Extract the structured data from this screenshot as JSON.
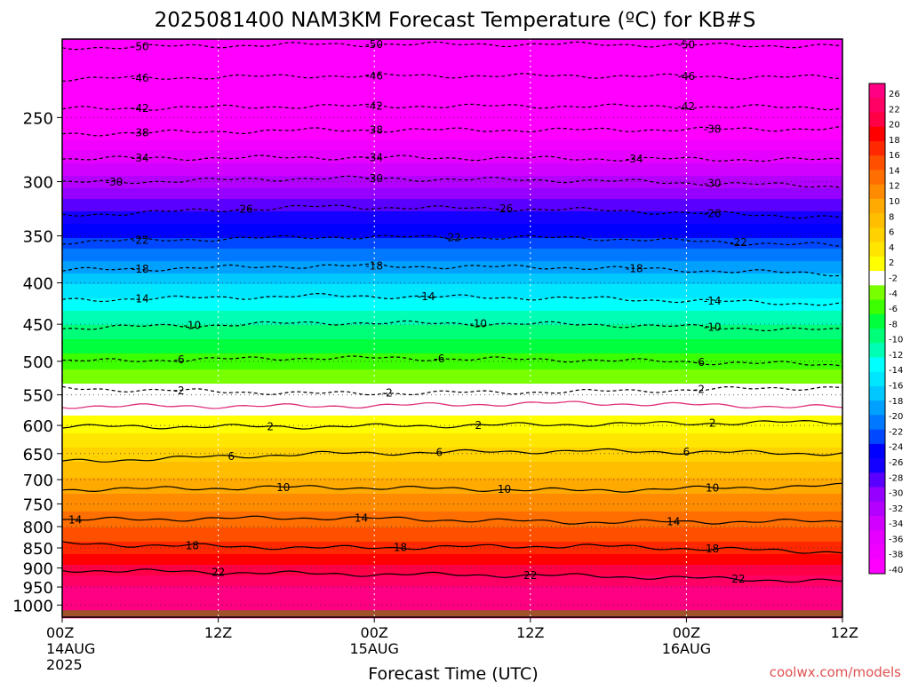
{
  "title": "2025081400 NAM3KM Forecast Temperature (ºC) for KB#S",
  "x_axis_label": "Forecast Time (UTC)",
  "credit": "coolwx.com/models",
  "chart_data": {
    "type": "heatmap",
    "title": "2025081400 NAM3KM Forecast Temperature (ºC) for KB#S",
    "xlabel": "Forecast Time (UTC)",
    "ylabel": "",
    "x_ticks": [
      {
        "hours": 0,
        "label": "00Z",
        "date": "14AUG",
        "year": "2025"
      },
      {
        "hours": 12,
        "label": "12Z",
        "date": "",
        "year": ""
      },
      {
        "hours": 24,
        "label": "00Z",
        "date": "15AUG",
        "year": ""
      },
      {
        "hours": 36,
        "label": "12Z",
        "date": "",
        "year": ""
      },
      {
        "hours": 48,
        "label": "00Z",
        "date": "16AUG",
        "year": ""
      },
      {
        "hours": 60,
        "label": "12Z",
        "date": "",
        "year": ""
      }
    ],
    "xlim": [
      0,
      60
    ],
    "y_scale": "log",
    "y_ticks": [
      250,
      300,
      350,
      400,
      450,
      500,
      550,
      600,
      650,
      700,
      750,
      800,
      850,
      900,
      950,
      1000
    ],
    "ylim": [
      1035,
      200
    ],
    "colorbar_labels": [
      26,
      22,
      20,
      18,
      16,
      14,
      12,
      10,
      8,
      6,
      4,
      2,
      -2,
      -4,
      -6,
      -8,
      -10,
      -12,
      -14,
      -16,
      -18,
      -20,
      -22,
      -24,
      -26,
      -28,
      -30,
      -32,
      -34,
      -36,
      -38,
      -40
    ],
    "colorbar": [
      {
        "t": -40,
        "color": "#ff00ff"
      },
      {
        "t": -38,
        "color": "#f200ff"
      },
      {
        "t": -36,
        "color": "#e600ff"
      },
      {
        "t": -34,
        "color": "#d200ff"
      },
      {
        "t": -32,
        "color": "#b400ff"
      },
      {
        "t": -30,
        "color": "#9600ff"
      },
      {
        "t": -28,
        "color": "#5a00ff"
      },
      {
        "t": -26,
        "color": "#1400ff"
      },
      {
        "t": -24,
        "color": "#0000ff"
      },
      {
        "t": -22,
        "color": "#0048ff"
      },
      {
        "t": -20,
        "color": "#0078ff"
      },
      {
        "t": -18,
        "color": "#00a0ff"
      },
      {
        "t": -16,
        "color": "#00c8ff"
      },
      {
        "t": -14,
        "color": "#00e6ff"
      },
      {
        "t": -12,
        "color": "#00ffff"
      },
      {
        "t": -10,
        "color": "#00ffb4"
      },
      {
        "t": -8,
        "color": "#00ff78"
      },
      {
        "t": -6,
        "color": "#00ff3c"
      },
      {
        "t": -4,
        "color": "#3cff00"
      },
      {
        "t": -2,
        "color": "#78ff00"
      },
      {
        "t": 0,
        "color": "#ffffff"
      },
      {
        "t": 2,
        "color": "#ffff00"
      },
      {
        "t": 4,
        "color": "#ffe600"
      },
      {
        "t": 6,
        "color": "#ffd200"
      },
      {
        "t": 8,
        "color": "#ffbe00"
      },
      {
        "t": 10,
        "color": "#ffaa00"
      },
      {
        "t": 12,
        "color": "#ff8c00"
      },
      {
        "t": 14,
        "color": "#ff6e00"
      },
      {
        "t": 16,
        "color": "#ff5000"
      },
      {
        "t": 18,
        "color": "#ff2800"
      },
      {
        "t": 20,
        "color": "#ff0000"
      },
      {
        "t": 22,
        "color": "#ff0046"
      },
      {
        "t": 24,
        "color": "#ff0064"
      },
      {
        "t": 26,
        "color": "#ff0082"
      }
    ],
    "profile": [
      {
        "p": 200,
        "t": -56
      },
      {
        "p": 205,
        "t": -54
      },
      {
        "p": 225,
        "t": -48
      },
      {
        "p": 245,
        "t": -44
      },
      {
        "p": 262,
        "t": -40
      },
      {
        "p": 280,
        "t": -36
      },
      {
        "p": 300,
        "t": -32
      },
      {
        "p": 320,
        "t": -28
      },
      {
        "p": 345,
        "t": -24
      },
      {
        "p": 370,
        "t": -20
      },
      {
        "p": 395,
        "t": -16
      },
      {
        "p": 425,
        "t": -12
      },
      {
        "p": 460,
        "t": -8
      },
      {
        "p": 500,
        "t": -4
      },
      {
        "p": 545,
        "t": 0
      },
      {
        "p": 575,
        "t": 0.6
      },
      {
        "p": 600,
        "t": 2
      },
      {
        "p": 650,
        "t": 6
      },
      {
        "p": 710,
        "t": 10
      },
      {
        "p": 785,
        "t": 14
      },
      {
        "p": 850,
        "t": 18
      },
      {
        "p": 905,
        "t": 22
      },
      {
        "p": 960,
        "t": 26
      },
      {
        "p": 1035,
        "t": 30
      }
    ],
    "contours": [
      {
        "t": -50,
        "dash": true,
        "pressure": [
          205,
          203,
          203,
          204
        ],
        "labels": [
          6,
          24,
          48
        ]
      },
      {
        "t": -46,
        "dash": true,
        "pressure": [
          224,
          222,
          222,
          223
        ],
        "labels": [
          6,
          24,
          48
        ]
      },
      {
        "t": -42,
        "dash": true,
        "pressure": [
          244,
          242,
          242,
          243
        ],
        "labels": [
          6,
          24,
          48
        ]
      },
      {
        "t": -38,
        "dash": true,
        "pressure": [
          262,
          259,
          259,
          258
        ],
        "labels": [
          6,
          24,
          50
        ]
      },
      {
        "t": -34,
        "dash": true,
        "pressure": [
          281,
          280,
          281,
          282
        ],
        "labels": [
          6,
          24,
          44
        ]
      },
      {
        "t": -30,
        "dash": true,
        "pressure": [
          301,
          297,
          299,
          304
        ],
        "labels": [
          4,
          24,
          50
        ]
      },
      {
        "t": -26,
        "dash": true,
        "pressure": [
          330,
          322,
          325,
          332
        ],
        "labels": [
          14,
          34,
          50
        ]
      },
      {
        "t": -22,
        "dash": true,
        "pressure": [
          356,
          351,
          352,
          360
        ],
        "labels": [
          6,
          30,
          52
        ]
      },
      {
        "t": -18,
        "dash": true,
        "pressure": [
          386,
          381,
          383,
          390
        ],
        "labels": [
          6,
          24,
          44
        ]
      },
      {
        "t": -14,
        "dash": true,
        "pressure": [
          420,
          415,
          418,
          425
        ],
        "labels": [
          6,
          28,
          50
        ]
      },
      {
        "t": -10,
        "dash": true,
        "pressure": [
          455,
          448,
          450,
          458
        ],
        "labels": [
          10,
          32,
          50
        ]
      },
      {
        "t": -6,
        "dash": true,
        "pressure": [
          500,
          495,
          498,
          505
        ],
        "labels": [
          9,
          29,
          49
        ]
      },
      {
        "t": -2,
        "dash": true,
        "pressure": [
          540,
          548,
          545,
          538
        ],
        "labels": [
          9,
          25,
          49
        ]
      },
      {
        "t": 0,
        "dash": false,
        "magenta": true,
        "pressure": [
          568,
          568,
          563,
          570
        ],
        "labels": []
      },
      {
        "t": 2,
        "dash": false,
        "pressure": [
          602,
          602,
          598,
          594
        ],
        "labels": [
          16,
          32,
          50
        ]
      },
      {
        "t": 6,
        "dash": false,
        "pressure": [
          665,
          650,
          645,
          650
        ],
        "labels": [
          13,
          29,
          48
        ]
      },
      {
        "t": 10,
        "dash": false,
        "pressure": [
          720,
          715,
          722,
          712
        ],
        "labels": [
          17,
          34,
          50
        ]
      },
      {
        "t": 14,
        "dash": false,
        "pressure": [
          785,
          780,
          790,
          788
        ],
        "labels": [
          1,
          23,
          47
        ]
      },
      {
        "t": 18,
        "dash": false,
        "pressure": [
          840,
          850,
          845,
          860
        ],
        "labels": [
          10,
          26,
          50
        ]
      },
      {
        "t": 22,
        "dash": false,
        "pressure": [
          905,
          915,
          920,
          935
        ],
        "labels": [
          12,
          36,
          52
        ]
      }
    ],
    "ground_pressure": 1015,
    "ground_color": "#a0522d",
    "colors": {
      "contour": "#000000",
      "freezing_line": "#e0307a",
      "credit": "#e05050",
      "grid": "#808080"
    }
  }
}
